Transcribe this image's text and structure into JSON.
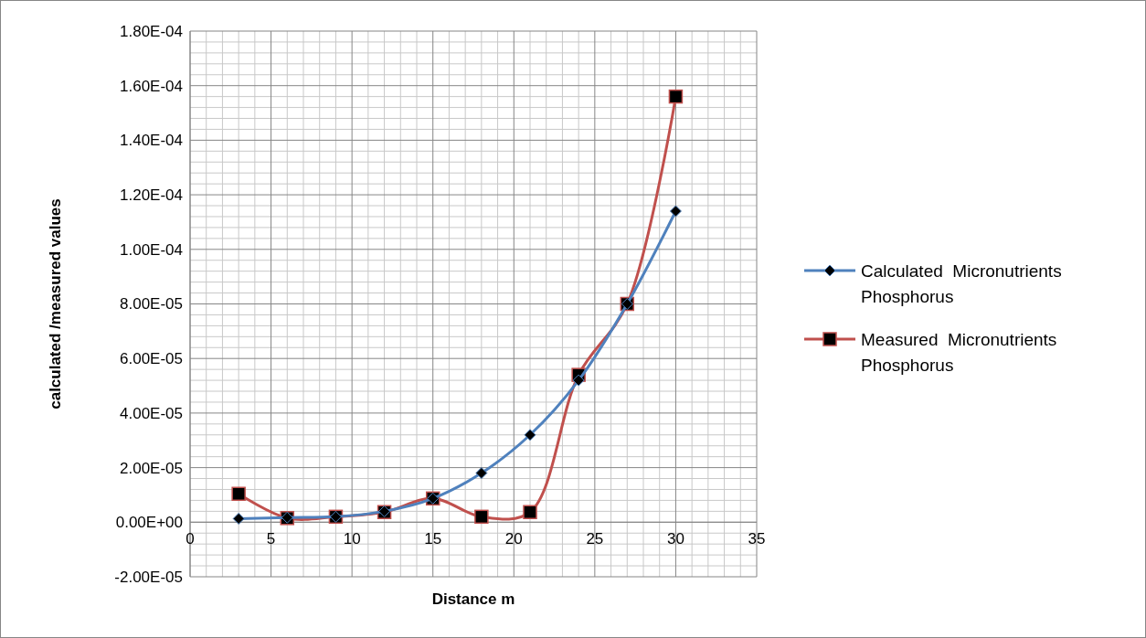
{
  "chart_data": {
    "type": "line",
    "xlabel": "Distance m",
    "ylabel": "calculated /measured values",
    "x": [
      3,
      6,
      9,
      12,
      15,
      18,
      21,
      24,
      27,
      30
    ],
    "series": [
      {
        "name": "Calculated  Micronutrients Phosphorus",
        "color": "#4f81bd",
        "marker": "diamond",
        "values": [
          1.3e-06,
          1.7e-06,
          2e-06,
          4e-06,
          8.7e-06,
          1.8e-05,
          3.2e-05,
          5.2e-05,
          8e-05,
          0.000114
        ]
      },
      {
        "name": "Measured  Micronutrients Phosphorus",
        "color": "#c0504d",
        "marker": "square",
        "values": [
          1.04e-05,
          1.5e-06,
          2e-06,
          3.7e-06,
          8.7e-06,
          2e-06,
          3.7e-06,
          5.4e-05,
          8e-05,
          0.000156
        ]
      }
    ],
    "xlim": [
      0,
      35
    ],
    "xticks": [
      0,
      5,
      10,
      15,
      20,
      25,
      30,
      35
    ],
    "ylim": [
      -2e-05,
      0.00018
    ],
    "yticks": [
      {
        "value": -2e-05,
        "label": "-2.00E-05"
      },
      {
        "value": 0,
        "label": "0.00E+00"
      },
      {
        "value": 2e-05,
        "label": "2.00E-05"
      },
      {
        "value": 4e-05,
        "label": "4.00E-05"
      },
      {
        "value": 6e-05,
        "label": "6.00E-05"
      },
      {
        "value": 8e-05,
        "label": "8.00E-05"
      },
      {
        "value": 0.0001,
        "label": "1.00E-04"
      },
      {
        "value": 0.00012,
        "label": "1.20E-04"
      },
      {
        "value": 0.00014,
        "label": "1.40E-04"
      },
      {
        "value": 0.00016,
        "label": "1.60E-04"
      },
      {
        "value": 0.00018,
        "label": "1.80E-04"
      }
    ],
    "grid": true,
    "legend": "right"
  }
}
